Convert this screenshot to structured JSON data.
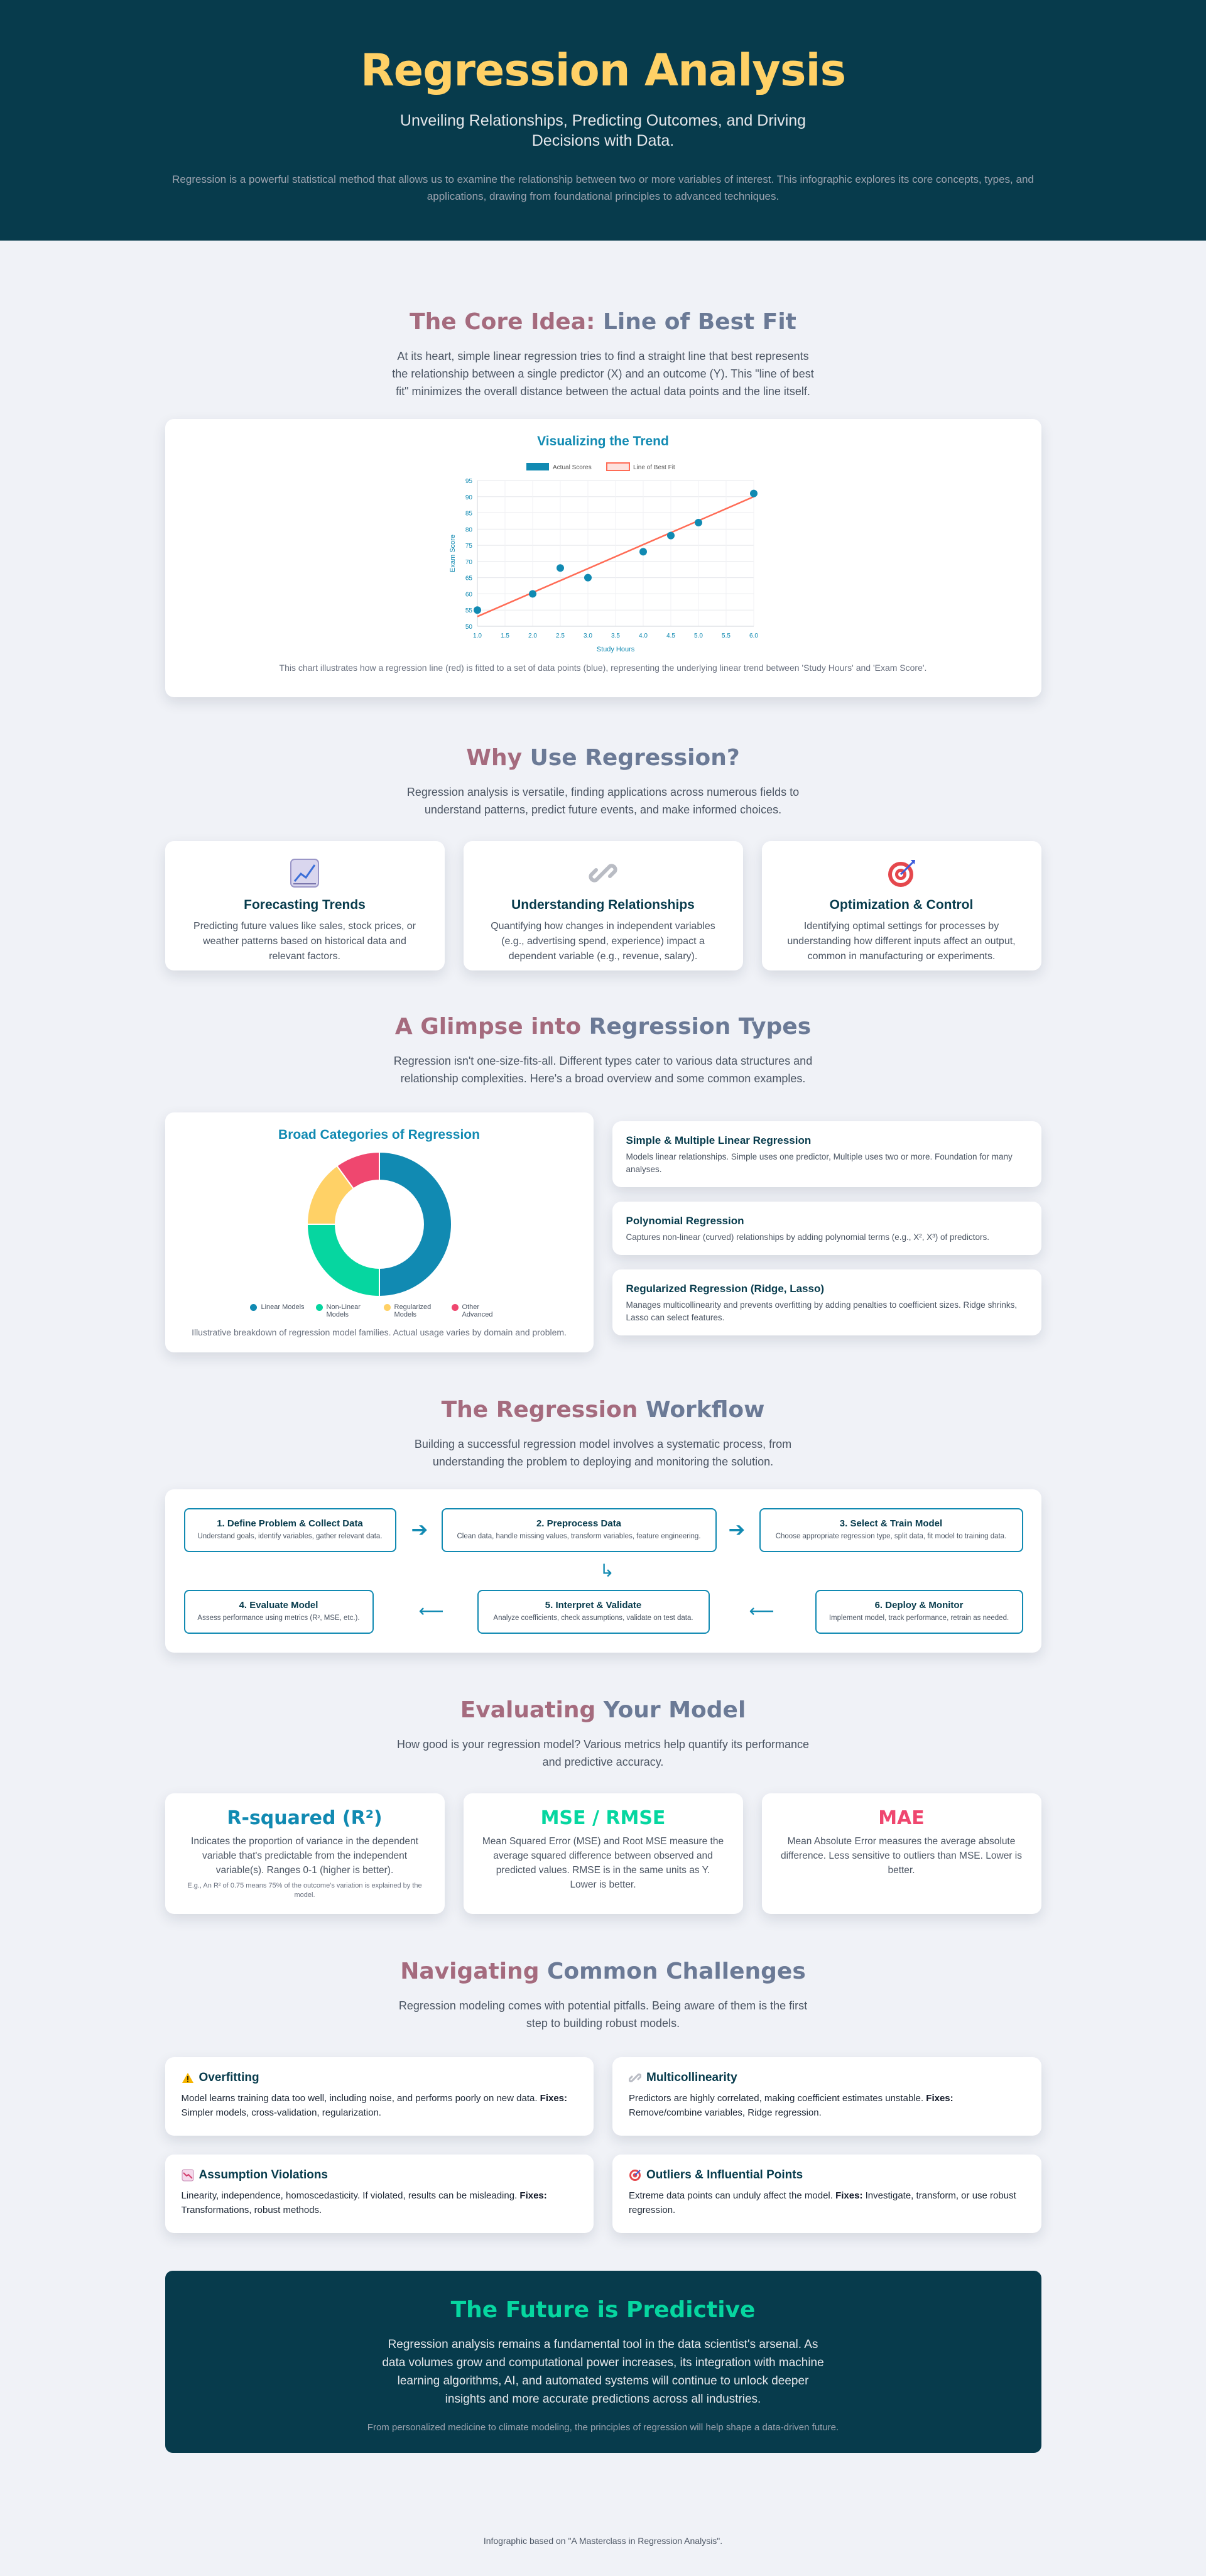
{
  "hero": {
    "title": "Regression Analysis",
    "subtitle": "Unveiling Relationships, Predicting Outcomes, and Driving Decisions with Data.",
    "intro": "Regression is a powerful statistical method that allows us to examine the relationship between two or more variables of interest. This infographic explores its core concepts, types, and applications, drawing from foundational principles to advanced techniques."
  },
  "core": {
    "title_a": "The Core Idea:",
    "title_b": " Line of Best Fit",
    "desc": "At its heart, simple linear regression tries to find a straight line that best represents the relationship between a single predictor (X) and an outcome (Y). This \"line of best fit\" minimizes the overall distance between the actual data points and the line itself.",
    "chart_title": "Visualizing the Trend",
    "caption": "This chart illustrates how a regression line (red) is fitted to a set of data points (blue), representing the underlying linear trend between 'Study Hours' and 'Exam Score'."
  },
  "why": {
    "title_a": "Why",
    "title_b": " Use Regression?",
    "desc": "Regression analysis is versatile, finding applications across numerous fields to understand patterns, predict future events, and make informed choices.",
    "cards": [
      {
        "title": "Forecasting Trends",
        "text": "Predicting future values like sales, stock prices, or weather patterns based on historical data and relevant factors."
      },
      {
        "title": "Understanding Relationships",
        "text": "Quantifying how changes in independent variables (e.g., advertising spend, experience) impact a dependent variable (e.g., revenue, salary)."
      },
      {
        "title": "Optimization & Control",
        "text": "Identifying optimal settings for processes by understanding how different inputs affect an output, common in manufacturing or experiments."
      }
    ]
  },
  "types": {
    "title_a": "A Glimpse into",
    "title_b": " Regression Types",
    "desc": "Regression isn't one-size-fits-all. Different types cater to various data structures and relationship complexities. Here's a broad overview and some common examples.",
    "chart_title": "Broad Categories of Regression",
    "caption": "Illustrative breakdown of regression model families. Actual usage varies by domain and problem.",
    "cards": [
      {
        "title": "Simple & Multiple Linear Regression",
        "text": "Models linear relationships. Simple uses one predictor, Multiple uses two or more. Foundation for many analyses."
      },
      {
        "title": "Polynomial Regression",
        "text": "Captures non-linear (curved) relationships by adding polynomial terms (e.g., X², X³) of predictors."
      },
      {
        "title": "Regularized Regression (Ridge, Lasso)",
        "text": "Manages multicollinearity and prevents overfitting by adding penalties to coefficient sizes. Ridge shrinks, Lasso can select features."
      }
    ]
  },
  "workflow": {
    "title_a": "The Regression",
    "title_b": " Workflow",
    "desc": "Building a successful regression model involves a systematic process, from understanding the problem to deploying and monitoring the solution.",
    "steps": [
      {
        "title": "1. Define Problem & Collect Data",
        "text": "Understand goals, identify variables, gather relevant data."
      },
      {
        "title": "2. Preprocess Data",
        "text": "Clean data, handle missing values, transform variables, feature engineering."
      },
      {
        "title": "3. Select & Train Model",
        "text": "Choose appropriate regression type, split data, fit model to training data."
      },
      {
        "title": "4. Evaluate Model",
        "text": "Assess performance using metrics (R², MSE, etc.)."
      },
      {
        "title": "5. Interpret & Validate",
        "text": "Analyze coefficients, check assumptions, validate on test data."
      },
      {
        "title": "6. Deploy & Monitor",
        "text": "Implement model, track performance, retrain as needed."
      }
    ],
    "arrows": {
      "right": "➔",
      "down": "↳",
      "left": "⟵"
    }
  },
  "evaluate": {
    "title_a": "Evaluating",
    "title_b": " Your Model",
    "desc": "How good is your regression model? Various metrics help quantify its performance and predictive accuracy.",
    "cards": [
      {
        "title": "R-squared (R²)",
        "text": "Indicates the proportion of variance in the dependent variable that's predictable from the independent variable(s). Ranges 0-1 (higher is better).",
        "note": "E.g., An R² of 0.75 means 75% of the outcome's variation is explained by the model.",
        "color": "#118ab2"
      },
      {
        "title": "MSE / RMSE",
        "text": "Mean Squared Error (MSE) and Root MSE measure the average squared difference between observed and predicted values. RMSE is in the same units as Y. Lower is better.",
        "note": "",
        "color": "#06d6a0"
      },
      {
        "title": "MAE",
        "text": "Mean Absolute Error measures the average absolute difference. Less sensitive to outliers than MSE. Lower is better.",
        "note": "",
        "color": "#ef476f"
      }
    ]
  },
  "challenges": {
    "title_a": "Navigating",
    "title_b": " Common Challenges",
    "desc": "Regression modeling comes with potential pitfalls. Being aware of them is the first step to building robust models.",
    "fixes_label": "Fixes:",
    "cards": [
      {
        "icon": "warning-icon",
        "title": "Overfitting",
        "text": "Model learns training data too well, including noise, and performs poorly on new data.",
        "fixes": " Simpler models, cross-validation, regularization."
      },
      {
        "icon": "link-icon",
        "title": "Multicollinearity",
        "text": "Predictors are highly correlated, making coefficient estimates unstable.",
        "fixes": " Remove/combine variables, Ridge regression."
      },
      {
        "icon": "chart-icon",
        "title": "Assumption Violations",
        "text": "Linearity, independence, homoscedasticity. If violated, results can be misleading.",
        "fixes": " Transformations, robust methods."
      },
      {
        "icon": "target-icon",
        "title": "Outliers & Influential Points",
        "text": "Extreme data points can unduly affect the model.",
        "fixes": " Investigate, transform, or use robust regression."
      }
    ]
  },
  "future": {
    "title": "The Future is Predictive",
    "text": "Regression analysis remains a fundamental tool in the data scientist's arsenal. As data volumes grow and computational power increases, its integration with machine learning algorithms, AI, and automated systems will continue to unlock deeper insights and more accurate predictions across all industries.",
    "sub": "From personalized medicine to climate modeling, the principles of regression will help shape a data-driven future."
  },
  "footer": "Infographic based on \"A Masterclass in Regression Analysis\".",
  "colors": {
    "blue": "#118ab2",
    "green": "#06d6a0",
    "yellow": "#ffd166",
    "red": "#ef476f",
    "navy": "#073b4c",
    "line": "#ff6b55"
  },
  "chart_data": [
    {
      "type": "scatter",
      "xlabel": "Study Hours",
      "ylabel": "Exam Score",
      "xlim": [
        1,
        6
      ],
      "ylim": [
        50,
        95
      ],
      "xticks": [
        "1.0",
        "1.5",
        "2.0",
        "2.5",
        "3.0",
        "3.5",
        "4.0",
        "4.5",
        "5.0",
        "5.5",
        "6.0"
      ],
      "yticks": [
        "50",
        "55",
        "60",
        "65",
        "70",
        "75",
        "80",
        "85",
        "90",
        "95"
      ],
      "grid": true,
      "legend_position": "top",
      "series": [
        {
          "name": "Actual Scores",
          "kind": "scatter",
          "x": [
            1.0,
            2.0,
            2.5,
            3.0,
            4.0,
            4.5,
            5.0,
            6.0
          ],
          "y": [
            55,
            60,
            68,
            65,
            73,
            78,
            82,
            91
          ]
        },
        {
          "name": "Line of Best Fit",
          "kind": "line",
          "x": [
            1.0,
            6.0
          ],
          "y": [
            53,
            90
          ]
        }
      ]
    },
    {
      "type": "pie",
      "title": "Broad Categories of Regression",
      "categories": [
        "Linear Models",
        "Non-Linear Models",
        "Regularized Models",
        "Other Advanced"
      ],
      "values": [
        50,
        25,
        15,
        10
      ],
      "legend_position": "bottom"
    }
  ]
}
